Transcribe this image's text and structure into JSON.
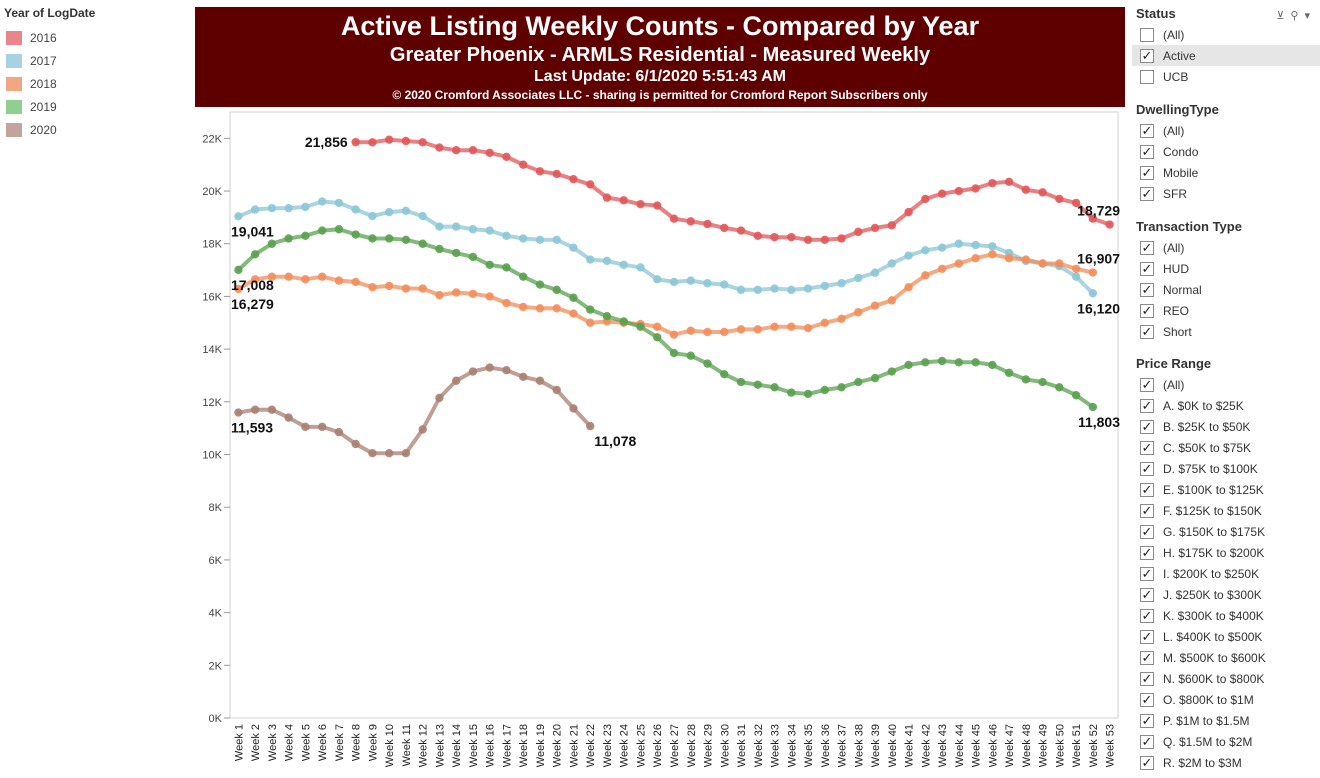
{
  "legend": {
    "title": "Year of LogDate",
    "items": [
      {
        "label": "2016",
        "color": "#e8868b"
      },
      {
        "label": "2017",
        "color": "#a6d3df"
      },
      {
        "label": "2018",
        "color": "#f1a784"
      },
      {
        "label": "2019",
        "color": "#8fcf8f"
      },
      {
        "label": "2020",
        "color": "#c2a49c"
      }
    ]
  },
  "banner": {
    "title": "Active Listing Weekly Counts - Compared by Year",
    "subtitle": "Greater Phoenix - ARMLS Residential - Measured Weekly",
    "update": "Last Update: 6/1/2020 5:51:43 AM",
    "copyright": "© 2020 Cromford Associates LLC - sharing is permitted for Cromford Report Subscribers only"
  },
  "filters": [
    {
      "title": "Status",
      "items": [
        {
          "label": "(All)",
          "checked": false
        },
        {
          "label": "Active",
          "checked": true,
          "selected": true
        },
        {
          "label": "UCB",
          "checked": false
        }
      ]
    },
    {
      "title": "DwellingType",
      "items": [
        {
          "label": "(All)",
          "checked": true
        },
        {
          "label": "Condo",
          "checked": true
        },
        {
          "label": "Mobile",
          "checked": true
        },
        {
          "label": "SFR",
          "checked": true
        }
      ]
    },
    {
      "title": "Transaction Type",
      "items": [
        {
          "label": "(All)",
          "checked": true
        },
        {
          "label": "HUD",
          "checked": true
        },
        {
          "label": "Normal",
          "checked": true
        },
        {
          "label": "REO",
          "checked": true
        },
        {
          "label": "Short",
          "checked": true
        }
      ]
    },
    {
      "title": "Price Range",
      "items": [
        {
          "label": "(All)",
          "checked": true
        },
        {
          "label": "A. $0K to $25K",
          "checked": true
        },
        {
          "label": "B. $25K to $50K",
          "checked": true
        },
        {
          "label": "C. $50K to $75K",
          "checked": true
        },
        {
          "label": "D. $75K to $100K",
          "checked": true
        },
        {
          "label": "E. $100K to $125K",
          "checked": true
        },
        {
          "label": "F. $125K to $150K",
          "checked": true
        },
        {
          "label": "G. $150K to $175K",
          "checked": true
        },
        {
          "label": "H. $175K to $200K",
          "checked": true
        },
        {
          "label": "I. $200K to $250K",
          "checked": true
        },
        {
          "label": "J. $250K to $300K",
          "checked": true
        },
        {
          "label": "K. $300K to $400K",
          "checked": true
        },
        {
          "label": "L. $400K to $500K",
          "checked": true
        },
        {
          "label": "M. $500K to $600K",
          "checked": true
        },
        {
          "label": "N. $600K to $800K",
          "checked": true
        },
        {
          "label": "O. $800K to $1M",
          "checked": true
        },
        {
          "label": "P. $1M to $1.5M",
          "checked": true
        },
        {
          "label": "Q. $1.5M to $2M",
          "checked": true
        },
        {
          "label": "R. $2M to $3M",
          "checked": true
        }
      ]
    }
  ],
  "chart_data": {
    "type": "line",
    "categories": [
      "Week 1",
      "Week 2",
      "Week 3",
      "Week 4",
      "Week 5",
      "Week 6",
      "Week 7",
      "Week 8",
      "Week 9",
      "Week 10",
      "Week 11",
      "Week 12",
      "Week 13",
      "Week 14",
      "Week 15",
      "Week 16",
      "Week 17",
      "Week 18",
      "Week 19",
      "Week 20",
      "Week 21",
      "Week 22",
      "Week 23",
      "Week 24",
      "Week 25",
      "Week 26",
      "Week 27",
      "Week 28",
      "Week 29",
      "Week 30",
      "Week 31",
      "Week 32",
      "Week 33",
      "Week 34",
      "Week 35",
      "Week 36",
      "Week 37",
      "Week 38",
      "Week 39",
      "Week 40",
      "Week 41",
      "Week 42",
      "Week 43",
      "Week 44",
      "Week 45",
      "Week 46",
      "Week 47",
      "Week 48",
      "Week 49",
      "Week 50",
      "Week 51",
      "Week 52",
      "Week 53"
    ],
    "ylim": [
      0,
      23000
    ],
    "yticks": [
      0,
      2000,
      4000,
      6000,
      8000,
      10000,
      12000,
      14000,
      16000,
      18000,
      20000,
      22000
    ],
    "ytick_labels": [
      "0K",
      "2K",
      "4K",
      "6K",
      "8K",
      "10K",
      "12K",
      "14K",
      "16K",
      "18K",
      "20K",
      "22K"
    ],
    "series": [
      {
        "name": "2016",
        "color": "#e15759",
        "values": [
          null,
          null,
          null,
          null,
          null,
          null,
          null,
          21856,
          21850,
          21950,
          21900,
          21850,
          21650,
          21550,
          21550,
          21450,
          21300,
          21000,
          20750,
          20650,
          20450,
          20250,
          19750,
          19650,
          19500,
          19450,
          18950,
          18850,
          18750,
          18600,
          18500,
          18300,
          18250,
          18250,
          18150,
          18150,
          18200,
          18450,
          18600,
          18700,
          19200,
          19700,
          19900,
          20000,
          20100,
          20300,
          20350,
          20050,
          19950,
          19700,
          19550,
          18950,
          18729
        ],
        "labels": [
          {
            "i": 7,
            "text": "21,856",
            "side": "left"
          },
          {
            "i": 52,
            "text": "18,729",
            "side": "above"
          }
        ]
      },
      {
        "name": "2017",
        "color": "#8cc6d6",
        "values": [
          19041,
          19300,
          19350,
          19350,
          19400,
          19600,
          19550,
          19300,
          19050,
          19200,
          19250,
          19050,
          18650,
          18650,
          18550,
          18500,
          18300,
          18200,
          18150,
          18150,
          17850,
          17400,
          17350,
          17200,
          17100,
          16650,
          16550,
          16600,
          16500,
          16450,
          16250,
          16250,
          16300,
          16250,
          16300,
          16400,
          16500,
          16700,
          16900,
          17250,
          17550,
          17750,
          17850,
          18000,
          17950,
          17900,
          17650,
          17350,
          17250,
          17150,
          16750,
          16120,
          null
        ],
        "labels": [
          {
            "i": 0,
            "text": "19,041",
            "side": "below"
          },
          {
            "i": 51,
            "text": "16,120",
            "side": "below"
          }
        ]
      },
      {
        "name": "2018",
        "color": "#f28e5b",
        "values": [
          16279,
          16650,
          16750,
          16750,
          16650,
          16750,
          16600,
          16550,
          16350,
          16400,
          16300,
          16300,
          16050,
          16150,
          16100,
          16000,
          15750,
          15600,
          15550,
          15550,
          15350,
          15000,
          15050,
          15000,
          14950,
          14850,
          14550,
          14700,
          14650,
          14650,
          14750,
          14750,
          14850,
          14850,
          14800,
          15000,
          15150,
          15400,
          15650,
          15850,
          16350,
          16800,
          17050,
          17250,
          17450,
          17600,
          17450,
          17400,
          17250,
          17250,
          17050,
          16907,
          null
        ],
        "labels": [
          {
            "i": 0,
            "text": "16,279",
            "side": "below"
          },
          {
            "i": 51,
            "text": "16,907",
            "side": "above"
          }
        ]
      },
      {
        "name": "2019",
        "color": "#59a14f",
        "values": [
          17008,
          17600,
          18000,
          18200,
          18300,
          18500,
          18550,
          18350,
          18200,
          18200,
          18150,
          18000,
          17800,
          17650,
          17500,
          17200,
          17100,
          16750,
          16450,
          16250,
          15950,
          15500,
          15250,
          15050,
          14850,
          14450,
          13850,
          13750,
          13450,
          13050,
          12750,
          12650,
          12550,
          12350,
          12300,
          12450,
          12550,
          12750,
          12900,
          13150,
          13400,
          13500,
          13550,
          13500,
          13500,
          13400,
          13100,
          12850,
          12750,
          12550,
          12250,
          11803,
          null
        ],
        "labels": [
          {
            "i": 0,
            "text": "17,008",
            "side": "below"
          },
          {
            "i": 51,
            "text": "11,803",
            "side": "below"
          }
        ]
      },
      {
        "name": "2020",
        "color": "#a97f71",
        "values": [
          11593,
          11700,
          11700,
          11400,
          11050,
          11050,
          10850,
          10400,
          10050,
          10050,
          10050,
          10950,
          12150,
          12800,
          13150,
          13300,
          13200,
          12950,
          12800,
          12450,
          11750,
          11078,
          null,
          null,
          null,
          null,
          null,
          null,
          null,
          null,
          null,
          null,
          null,
          null,
          null,
          null,
          null,
          null,
          null,
          null,
          null,
          null,
          null,
          null,
          null,
          null,
          null,
          null,
          null,
          null,
          null,
          null,
          null
        ],
        "labels": [
          {
            "i": 0,
            "text": "11,593",
            "side": "below"
          },
          {
            "i": 21,
            "text": "11,078",
            "side": "belowright"
          }
        ]
      }
    ]
  }
}
